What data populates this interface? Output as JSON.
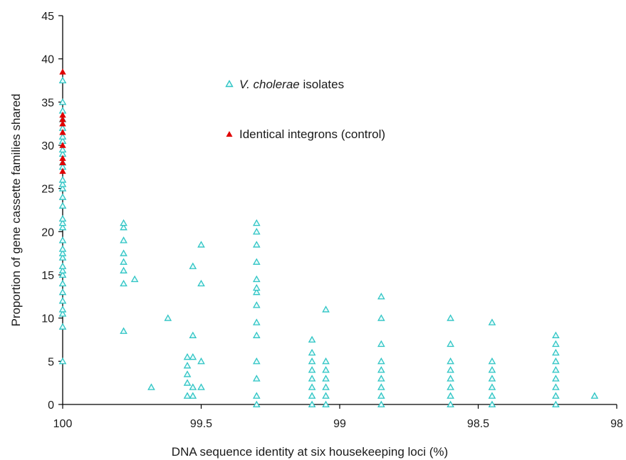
{
  "chart_data": {
    "type": "scatter",
    "xlabel": "DNA sequence identity at six housekeeping loci (%)",
    "ylabel": "Proportion of gene cassette families shared",
    "xlim": [
      100,
      98
    ],
    "ylim": [
      0,
      45
    ],
    "x_reversed": true,
    "xticks": [
      "100",
      "99.5",
      "99",
      "98.5",
      "98"
    ],
    "yticks": [
      "0",
      "5",
      "10",
      "15",
      "20",
      "25",
      "30",
      "35",
      "40",
      "45"
    ],
    "grid": false,
    "legend_position": "upper-middle",
    "legend": [
      {
        "key": "isolates",
        "italic": "V. cholerae",
        "rest": " isolates"
      },
      {
        "key": "control",
        "italic": "",
        "rest": "Identical integrons (control)"
      }
    ],
    "colors": {
      "isolates_stroke": "#2ec4c4",
      "isolates_fill": "#e6fbfb",
      "control_fill": "#e00000",
      "axis": "#000000"
    },
    "series": [
      {
        "name": "V. cholerae isolates",
        "marker": "open-triangle",
        "x_groups": [
          {
            "x": 100,
            "y": [
              5,
              9,
              10.5,
              11,
              12,
              13,
              14,
              15,
              15.5,
              16,
              17,
              17.5,
              18,
              19,
              20.5,
              21,
              21.5,
              23,
              24,
              25,
              25.5,
              26,
              27.5,
              28,
              29,
              29.5,
              30.5,
              31,
              32,
              33,
              34,
              35,
              37.5
            ]
          },
          {
            "x": 99.78,
            "y": [
              8.5,
              14,
              15.5,
              16.5,
              17.5,
              19,
              20.5,
              21
            ]
          },
          {
            "x": 99.74,
            "y": [
              14.5
            ]
          },
          {
            "x": 99.68,
            "y": [
              2
            ]
          },
          {
            "x": 99.62,
            "y": [
              10
            ]
          },
          {
            "x": 99.55,
            "y": [
              1,
              2.5,
              3.5,
              4.5,
              5.5
            ]
          },
          {
            "x": 99.53,
            "y": [
              1,
              2,
              5.5,
              8,
              16
            ]
          },
          {
            "x": 99.5,
            "y": [
              2,
              5,
              14,
              18.5
            ]
          },
          {
            "x": 99.3,
            "y": [
              0,
              1,
              3,
              5,
              8,
              9.5,
              11.5,
              13,
              13.5,
              14.5,
              16.5,
              18.5,
              20,
              21
            ]
          },
          {
            "x": 99.1,
            "y": [
              0,
              1,
              2,
              3,
              4,
              5,
              6,
              7.5
            ]
          },
          {
            "x": 99.05,
            "y": [
              0,
              1,
              2,
              3,
              4,
              5,
              11
            ]
          },
          {
            "x": 98.85,
            "y": [
              0,
              1,
              2,
              3,
              4,
              5,
              7,
              10,
              12.5
            ]
          },
          {
            "x": 98.6,
            "y": [
              0,
              1,
              2,
              3,
              4,
              5,
              7,
              10
            ]
          },
          {
            "x": 98.45,
            "y": [
              0,
              1,
              2,
              3,
              4,
              5,
              9.5
            ]
          },
          {
            "x": 98.22,
            "y": [
              0,
              1,
              2,
              3,
              4,
              5,
              6,
              7,
              8
            ]
          },
          {
            "x": 98.08,
            "y": [
              1
            ]
          }
        ]
      },
      {
        "name": "Identical integrons (control)",
        "marker": "filled-triangle",
        "x_groups": [
          {
            "x": 100,
            "y": [
              27,
              28,
              28.5,
              30,
              31.5,
              32.5,
              33,
              33.5,
              38.5
            ]
          }
        ]
      }
    ]
  }
}
